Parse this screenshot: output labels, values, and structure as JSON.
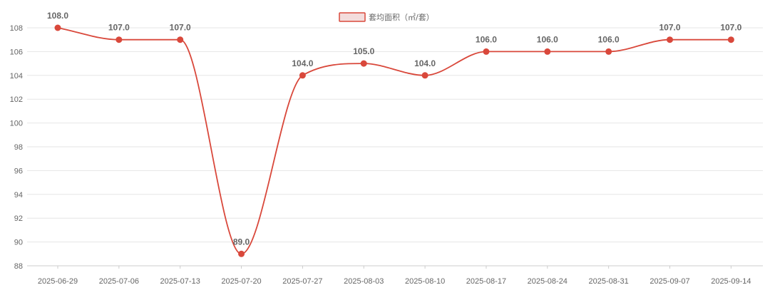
{
  "chart_data": {
    "type": "line",
    "categories": [
      "2025-06-29",
      "2025-07-06",
      "2025-07-13",
      "2025-07-20",
      "2025-07-27",
      "2025-08-03",
      "2025-08-10",
      "2025-08-17",
      "2025-08-24",
      "2025-08-31",
      "2025-09-07",
      "2025-09-14"
    ],
    "series": [
      {
        "name": "套均面积（㎡/套）",
        "values": [
          108.0,
          107.0,
          107.0,
          89.0,
          104.0,
          105.0,
          104.0,
          106.0,
          106.0,
          106.0,
          107.0,
          107.0
        ],
        "labels": [
          "108.0",
          "107.0",
          "107.0",
          "89.0",
          "104.0",
          "105.0",
          "104.0",
          "106.0",
          "106.0",
          "106.0",
          "107.0",
          "107.0"
        ]
      }
    ],
    "yticks": [
      "108",
      "106",
      "104",
      "102",
      "100",
      "98",
      "96",
      "94",
      "92",
      "90",
      "88"
    ],
    "ylim": [
      88,
      108
    ],
    "smooth": true,
    "grid": true,
    "legend_position": "top-center",
    "colors": {
      "line": "#d9483b",
      "point": "#d9483b",
      "legend_fill": "#f3dcdc",
      "legend_border": "#d9483b"
    }
  }
}
